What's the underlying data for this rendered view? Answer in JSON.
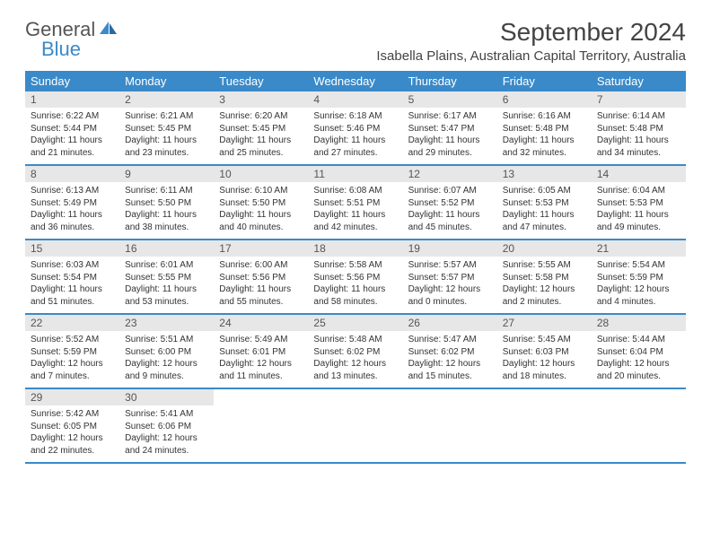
{
  "logo": {
    "general": "General",
    "blue": "Blue"
  },
  "title": "September 2024",
  "location": "Isabella Plains, Australian Capital Territory, Australia",
  "colors": {
    "header_bg": "#3a8ac9",
    "header_text": "#ffffff",
    "daynum_bg": "#e7e7e7",
    "body_bg": "#ffffff",
    "text": "#333333"
  },
  "day_names": [
    "Sunday",
    "Monday",
    "Tuesday",
    "Wednesday",
    "Thursday",
    "Friday",
    "Saturday"
  ],
  "weeks": [
    [
      {
        "n": "1",
        "sr": "6:22 AM",
        "ss": "5:44 PM",
        "dl": "11 hours and 21 minutes."
      },
      {
        "n": "2",
        "sr": "6:21 AM",
        "ss": "5:45 PM",
        "dl": "11 hours and 23 minutes."
      },
      {
        "n": "3",
        "sr": "6:20 AM",
        "ss": "5:45 PM",
        "dl": "11 hours and 25 minutes."
      },
      {
        "n": "4",
        "sr": "6:18 AM",
        "ss": "5:46 PM",
        "dl": "11 hours and 27 minutes."
      },
      {
        "n": "5",
        "sr": "6:17 AM",
        "ss": "5:47 PM",
        "dl": "11 hours and 29 minutes."
      },
      {
        "n": "6",
        "sr": "6:16 AM",
        "ss": "5:48 PM",
        "dl": "11 hours and 32 minutes."
      },
      {
        "n": "7",
        "sr": "6:14 AM",
        "ss": "5:48 PM",
        "dl": "11 hours and 34 minutes."
      }
    ],
    [
      {
        "n": "8",
        "sr": "6:13 AM",
        "ss": "5:49 PM",
        "dl": "11 hours and 36 minutes."
      },
      {
        "n": "9",
        "sr": "6:11 AM",
        "ss": "5:50 PM",
        "dl": "11 hours and 38 minutes."
      },
      {
        "n": "10",
        "sr": "6:10 AM",
        "ss": "5:50 PM",
        "dl": "11 hours and 40 minutes."
      },
      {
        "n": "11",
        "sr": "6:08 AM",
        "ss": "5:51 PM",
        "dl": "11 hours and 42 minutes."
      },
      {
        "n": "12",
        "sr": "6:07 AM",
        "ss": "5:52 PM",
        "dl": "11 hours and 45 minutes."
      },
      {
        "n": "13",
        "sr": "6:05 AM",
        "ss": "5:53 PM",
        "dl": "11 hours and 47 minutes."
      },
      {
        "n": "14",
        "sr": "6:04 AM",
        "ss": "5:53 PM",
        "dl": "11 hours and 49 minutes."
      }
    ],
    [
      {
        "n": "15",
        "sr": "6:03 AM",
        "ss": "5:54 PM",
        "dl": "11 hours and 51 minutes."
      },
      {
        "n": "16",
        "sr": "6:01 AM",
        "ss": "5:55 PM",
        "dl": "11 hours and 53 minutes."
      },
      {
        "n": "17",
        "sr": "6:00 AM",
        "ss": "5:56 PM",
        "dl": "11 hours and 55 minutes."
      },
      {
        "n": "18",
        "sr": "5:58 AM",
        "ss": "5:56 PM",
        "dl": "11 hours and 58 minutes."
      },
      {
        "n": "19",
        "sr": "5:57 AM",
        "ss": "5:57 PM",
        "dl": "12 hours and 0 minutes."
      },
      {
        "n": "20",
        "sr": "5:55 AM",
        "ss": "5:58 PM",
        "dl": "12 hours and 2 minutes."
      },
      {
        "n": "21",
        "sr": "5:54 AM",
        "ss": "5:59 PM",
        "dl": "12 hours and 4 minutes."
      }
    ],
    [
      {
        "n": "22",
        "sr": "5:52 AM",
        "ss": "5:59 PM",
        "dl": "12 hours and 7 minutes."
      },
      {
        "n": "23",
        "sr": "5:51 AM",
        "ss": "6:00 PM",
        "dl": "12 hours and 9 minutes."
      },
      {
        "n": "24",
        "sr": "5:49 AM",
        "ss": "6:01 PM",
        "dl": "12 hours and 11 minutes."
      },
      {
        "n": "25",
        "sr": "5:48 AM",
        "ss": "6:02 PM",
        "dl": "12 hours and 13 minutes."
      },
      {
        "n": "26",
        "sr": "5:47 AM",
        "ss": "6:02 PM",
        "dl": "12 hours and 15 minutes."
      },
      {
        "n": "27",
        "sr": "5:45 AM",
        "ss": "6:03 PM",
        "dl": "12 hours and 18 minutes."
      },
      {
        "n": "28",
        "sr": "5:44 AM",
        "ss": "6:04 PM",
        "dl": "12 hours and 20 minutes."
      }
    ],
    [
      {
        "n": "29",
        "sr": "5:42 AM",
        "ss": "6:05 PM",
        "dl": "12 hours and 22 minutes."
      },
      {
        "n": "30",
        "sr": "5:41 AM",
        "ss": "6:06 PM",
        "dl": "12 hours and 24 minutes."
      },
      null,
      null,
      null,
      null,
      null
    ]
  ],
  "labels": {
    "sunrise": "Sunrise:",
    "sunset": "Sunset:",
    "daylight": "Daylight:"
  }
}
